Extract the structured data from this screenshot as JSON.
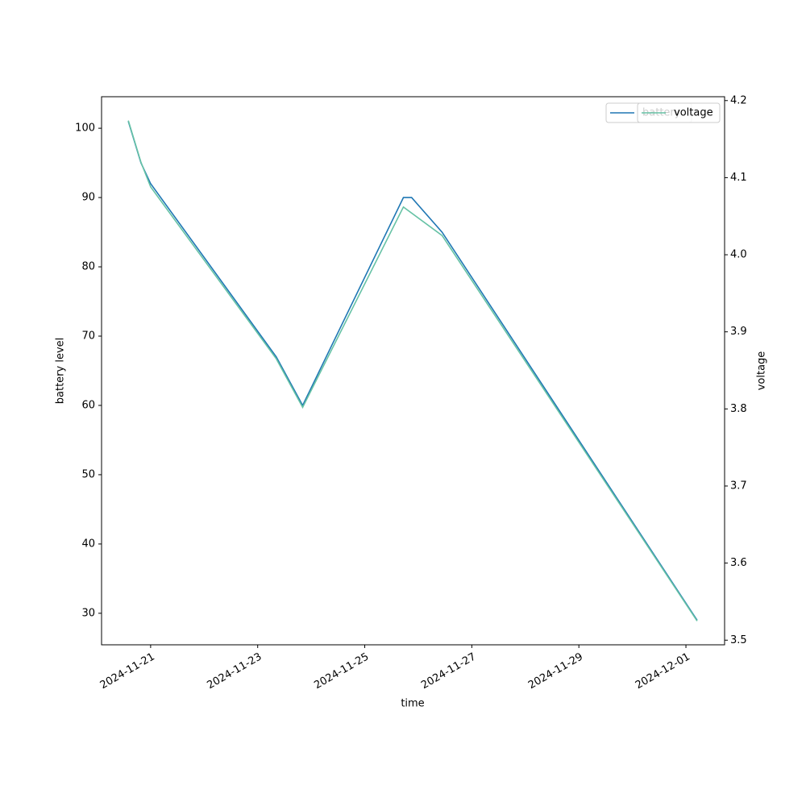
{
  "chart_data": {
    "type": "line",
    "xlabel": "time",
    "ylabel": "battery level",
    "y2label": "voltage",
    "xlim": [
      "2024-11-20T02:00",
      "2024-12-01T17:20"
    ],
    "xticks": [
      "2024-11-21",
      "2024-11-23",
      "2024-11-25",
      "2024-11-27",
      "2024-11-29",
      "2024-12-01"
    ],
    "ylim": [
      25.45,
      104.55
    ],
    "yticks": [
      30,
      40,
      50,
      60,
      70,
      80,
      90,
      100
    ],
    "y2lim": [
      3.494,
      4.205
    ],
    "y2ticks": [
      3.5,
      3.6,
      3.7,
      3.8,
      3.9,
      {
        "value": 4,
        "label": "4.0"
      },
      4.1,
      4.2
    ],
    "series": [
      {
        "name": "battery",
        "color": "#1f77b4",
        "x": [
          "2024-11-20T14:00",
          "2024-11-20T19:40",
          "2024-11-21T00:00",
          "2024-11-23T08:20",
          "2024-11-23T20:10",
          "2024-11-25T17:20",
          "2024-11-25T21:00",
          "2024-11-26T10:40",
          "2024-12-01T05:00"
        ],
        "values": [
          101,
          95,
          92,
          67,
          60,
          90,
          90,
          85,
          29
        ]
      },
      {
        "name": "voltage",
        "color": "#66c2a5",
        "axis": "y2",
        "x": [
          "2024-11-20T14:00",
          "2024-11-20T19:40",
          "2024-11-21T00:00",
          "2024-11-23T08:20",
          "2024-11-23T20:10",
          "2024-11-25T17:20",
          "2024-11-26T10:40",
          "2024-12-01T05:00"
        ],
        "values": [
          4.174,
          4.12,
          4.088,
          3.865,
          3.802,
          4.062,
          4.025,
          3.525
        ]
      }
    ]
  }
}
